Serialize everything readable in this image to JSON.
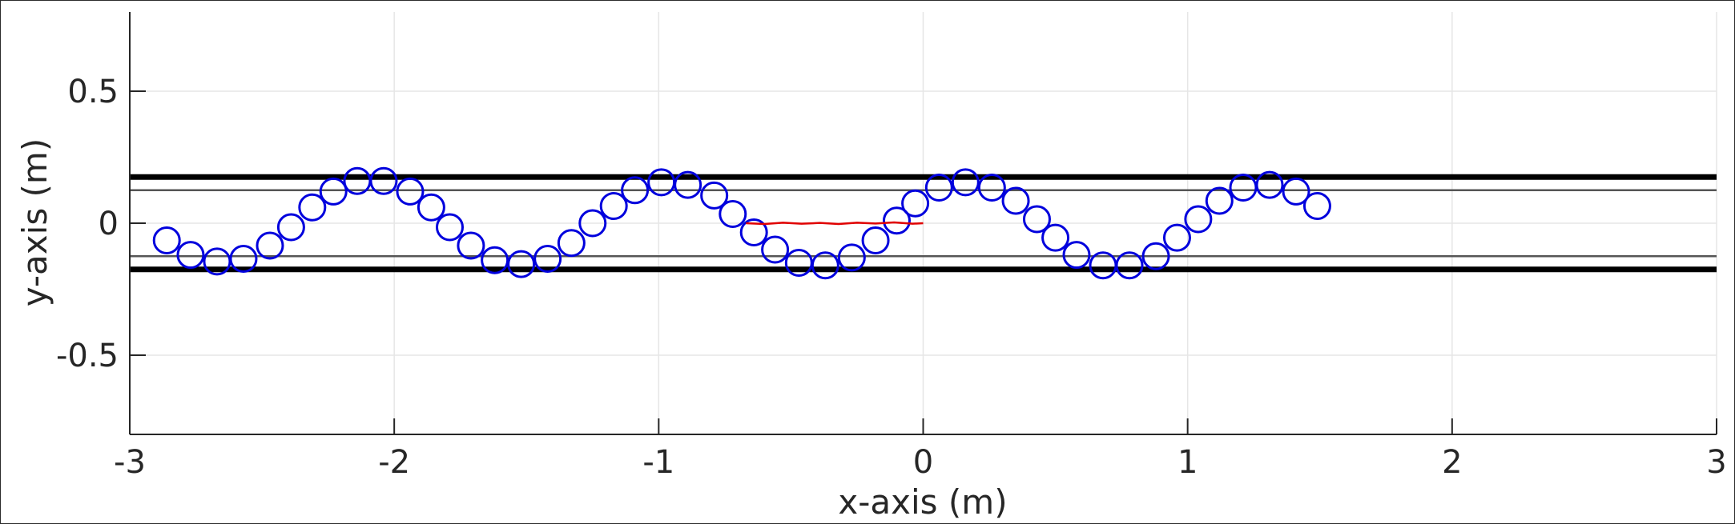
{
  "chart_data": {
    "type": "scatter",
    "title": "",
    "xlabel": "x-axis (m)",
    "ylabel": "y-axis (m)",
    "xlim": [
      -3,
      3
    ],
    "ylim": [
      -0.8,
      0.8
    ],
    "grid": true,
    "x_ticks": [
      -3,
      -2,
      -1,
      0,
      1,
      2,
      3
    ],
    "x_tick_labels": [
      "-3",
      "-2",
      "-1",
      "0",
      "1",
      "2",
      "3"
    ],
    "y_ticks": [
      -0.5,
      0,
      0.5
    ],
    "y_tick_labels": [
      "-0.5",
      "0",
      "0.5"
    ],
    "reference_lines": [
      {
        "y": 0.175,
        "style": "thick",
        "color": "#000000"
      },
      {
        "y": -0.175,
        "style": "thick",
        "color": "#000000"
      },
      {
        "y": 0.125,
        "style": "thin",
        "color": "#555555"
      },
      {
        "y": -0.125,
        "style": "thin",
        "color": "#555555"
      }
    ],
    "series": [
      {
        "marker": "circle",
        "color": "#0000dd",
        "x": [
          -2.86,
          -2.77,
          -2.67,
          -2.57,
          -2.47,
          -2.39,
          -2.31,
          -2.23,
          -2.14,
          -2.04,
          -1.94,
          -1.86,
          -1.79,
          -1.71,
          -1.62,
          -1.52,
          -1.42,
          -1.33,
          -1.25,
          -1.17,
          -1.09,
          -0.99,
          -0.89,
          -0.79,
          -0.72,
          -0.64,
          -0.56,
          -0.47,
          -0.37,
          -0.27,
          -0.18,
          -0.1,
          -0.03,
          0.06,
          0.16,
          0.26,
          0.35,
          0.43,
          0.5,
          0.58,
          0.68,
          0.78,
          0.88,
          0.96,
          1.04,
          1.12,
          1.21,
          1.31,
          1.41,
          1.49
        ],
        "y": [
          -0.065,
          -0.12,
          -0.145,
          -0.135,
          -0.085,
          -0.015,
          0.06,
          0.12,
          0.16,
          0.16,
          0.12,
          0.06,
          -0.015,
          -0.085,
          -0.14,
          -0.155,
          -0.135,
          -0.075,
          0.0,
          0.065,
          0.125,
          0.155,
          0.145,
          0.105,
          0.035,
          -0.035,
          -0.1,
          -0.15,
          -0.16,
          -0.13,
          -0.065,
          0.01,
          0.075,
          0.135,
          0.155,
          0.135,
          0.085,
          0.015,
          -0.055,
          -0.12,
          -0.16,
          -0.16,
          -0.125,
          -0.055,
          0.015,
          0.085,
          0.135,
          0.145,
          0.12,
          0.065
        ]
      },
      {
        "marker": "line",
        "color": "#e00000",
        "x": [
          -0.67,
          -0.6,
          -0.53,
          -0.46,
          -0.39,
          -0.32,
          -0.25,
          -0.18,
          -0.11,
          -0.04,
          0.0
        ],
        "y": [
          0.0,
          -0.003,
          0.002,
          -0.002,
          0.001,
          -0.003,
          0.002,
          -0.001,
          0.003,
          -0.002,
          0.0
        ]
      }
    ]
  }
}
